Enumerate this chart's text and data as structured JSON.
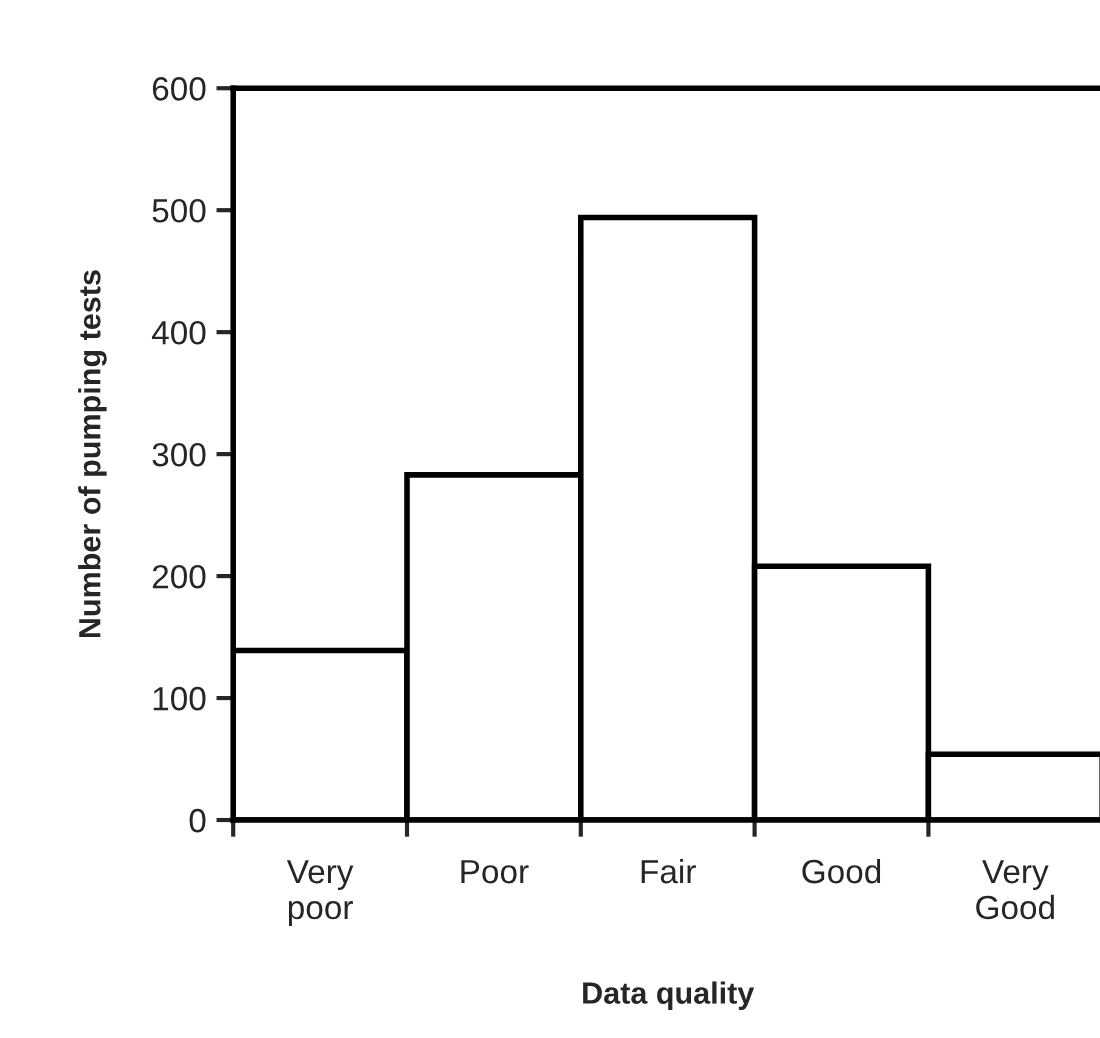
{
  "chart_data": {
    "type": "bar",
    "xlabel": "Data quality",
    "ylabel": "Number of pumping tests",
    "categories": [
      "Very\npoor",
      "Poor",
      "Fair",
      "Good",
      "Very\nGood"
    ],
    "values": [
      139,
      283,
      494,
      208,
      54
    ],
    "color": "#ffffff",
    "ylim": [
      0,
      600
    ],
    "yticks": [
      0,
      100,
      200,
      300,
      400,
      500,
      600
    ],
    "grid": false
  }
}
